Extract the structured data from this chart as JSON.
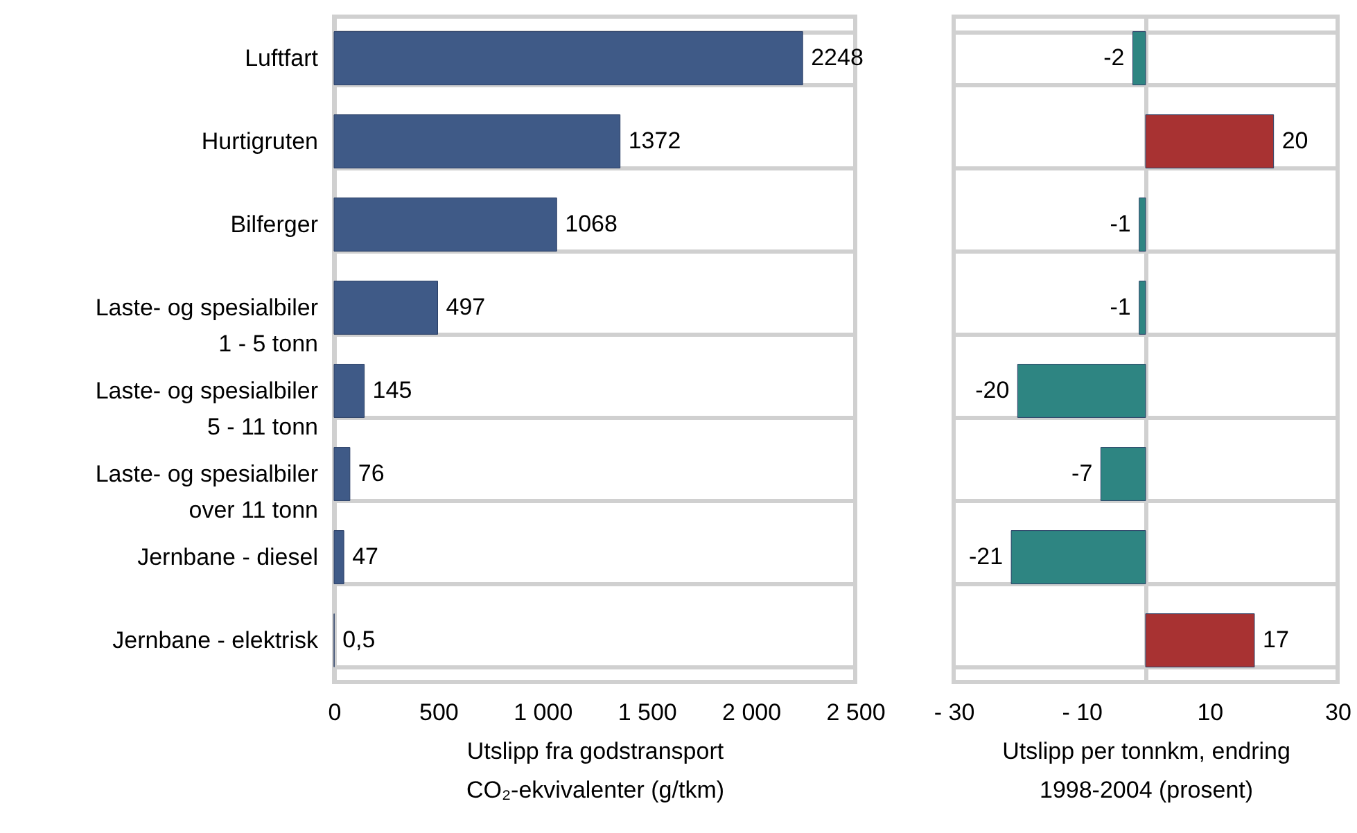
{
  "chart_data": [
    {
      "type": "bar",
      "orientation": "horizontal",
      "categories": [
        "Luftfart",
        "Hurtigruten",
        "Bilferger",
        "Laste- og spesialbiler\n1 - 5 tonn",
        "Laste- og spesialbiler\n5 - 11 tonn",
        "Laste- og spesialbiler\nover 11 tonn",
        "Jernbane - diesel",
        "Jernbane - elektrisk"
      ],
      "values": [
        2248,
        1372,
        1068,
        497,
        145,
        76,
        47,
        0.5
      ],
      "value_labels": [
        "2248",
        "1372",
        "1068",
        "497",
        "145",
        "76",
        "47",
        "0,5"
      ],
      "color": "#3f5a87",
      "xlim": [
        0,
        2500
      ],
      "xticks": [
        0,
        500,
        {
          "value": 1000,
          "label": "1 000"
        },
        {
          "value": 1500,
          "label": "1 500"
        },
        {
          "value": 2000,
          "label": "2 000"
        },
        {
          "value": 2500,
          "label": "2 500"
        }
      ],
      "xlabel": "Utslipp fra godstransport\nCO₂-ekvivalenter (g/tkm)",
      "grid": "y"
    },
    {
      "type": "bar",
      "orientation": "horizontal",
      "categories": [
        null,
        null,
        null,
        null,
        null,
        null,
        null,
        null
      ],
      "values": [
        -2,
        20,
        -1,
        -1,
        -20,
        -7,
        -21,
        17
      ],
      "colors": [
        "#2e8582",
        "#a83232",
        "#2e8582",
        "#2e8582",
        "#2e8582",
        "#2e8582",
        "#2e8582",
        "#a83232"
      ],
      "data_labels": true,
      "xlim": [
        -30,
        30
      ],
      "xticks": [
        {
          "value": -30,
          "label": "- 30"
        },
        {
          "value": -10,
          "label": "- 10"
        },
        10,
        30
      ],
      "xlabel": "Utslipp per tonnkm, endring\n1998-2004 (prosent)",
      "grid": "y",
      "tick_labels": "x"
    }
  ]
}
